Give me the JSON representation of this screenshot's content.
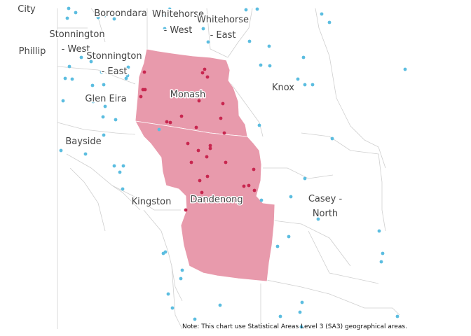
{
  "map": {
    "highlight_color": "#e89aac",
    "highlight_dot_color": "#c8264f",
    "other_dot_color": "#5bbde0",
    "highlighted_regions": [
      "Monash",
      "Dandenong"
    ],
    "labels": {
      "city": "City",
      "boroondara": "Boroondara",
      "whitehorse_west_1": "Whitehorse",
      "whitehorse_west_2": "- West",
      "whitehorse_east_1": "Whitehorse",
      "whitehorse_east_2": "- East",
      "stonnington_west_1": "Stonnington",
      "stonnington_west_2": "- West",
      "port_phillip": "Phillip",
      "stonnington_east_1": "Stonnington",
      "stonnington_east_2": "- East",
      "glen_eira": "Glen Eira",
      "monash": "Monash",
      "knox": "Knox",
      "bayside": "Bayside",
      "kingston": "Kingston",
      "dandenong": "Dandenong",
      "casey_north_1": "Casey -",
      "casey_north_2": "North"
    }
  },
  "note": "Note: This chart use Statistical Areas Level 3 (SA3) geographical areas."
}
